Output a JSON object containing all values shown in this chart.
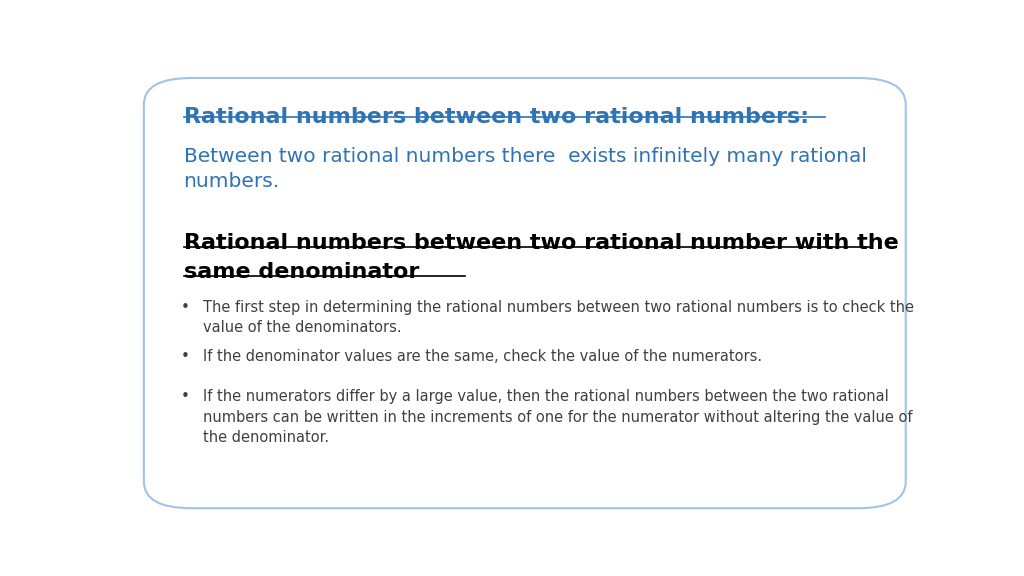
{
  "title": "Rational numbers between two rational numbers:",
  "title_color": "#2E74B5",
  "subtitle": "Between two rational numbers there  exists infinitely many rational\nnumbers.",
  "subtitle_color": "#2E74B5",
  "section_heading_line1": "Rational numbers between two rational number with the",
  "section_heading_line2": "same denominator",
  "section_heading_color": "#000000",
  "bullets": [
    "The first step in determining the rational numbers between two rational numbers is to check the\nvalue of the denominators.",
    "If the denominator values are the same, check the value of the numerators.",
    "If the numerators differ by a large value, then the rational numbers between the two rational\nnumbers can be written in the increments of one for the numerator without altering the value of\nthe denominator."
  ],
  "bullet_color": "#404040",
  "background_color": "#ffffff",
  "border_color": "#A0C4E8",
  "fig_width": 10.24,
  "fig_height": 5.76
}
